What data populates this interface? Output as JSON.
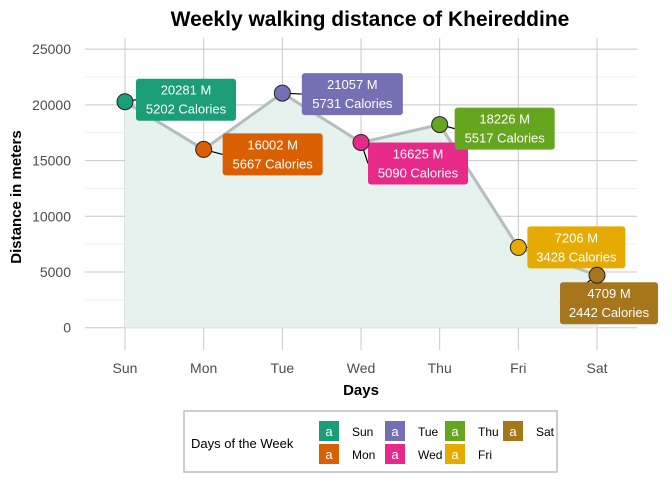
{
  "chart_data": {
    "type": "area",
    "title": "Weekly walking distance of Kheireddine",
    "xlabel": "Days",
    "ylabel": "Distance in meters",
    "ylim": [
      -2000,
      26000
    ],
    "yticks": [
      0,
      5000,
      10000,
      15000,
      20000,
      25000
    ],
    "ytick_labels": [
      "0",
      "5000",
      "10000",
      "15000",
      "20000",
      "25000"
    ],
    "categories": [
      "Sun",
      "Mon",
      "Tue",
      "Wed",
      "Thu",
      "Fri",
      "Sat"
    ],
    "values": [
      20281,
      16002,
      21057,
      16625,
      18226,
      7206,
      4709
    ],
    "calories": [
      5202,
      5667,
      5731,
      5090,
      5517,
      3428,
      2442
    ],
    "distance_labels": [
      "20281 M",
      "16002 M",
      "21057 M",
      "16625 M",
      "18226 M",
      "7206 M",
      "4709 M"
    ],
    "calorie_labels": [
      "5202 Calories",
      "5667 Calories",
      "5731 Calories",
      "5090 Calories",
      "5517 Calories",
      "3428 Calories",
      "2442 Calories"
    ],
    "colors": [
      "#1b9e77",
      "#d95f02",
      "#7570b3",
      "#e7298a",
      "#66a61e",
      "#e6ab02",
      "#a6761d"
    ],
    "line_color": "#b5bdbf",
    "area_color": "#e6f2ee",
    "grid": true,
    "legend": {
      "title": "Days of the  Week",
      "placement": "bottom",
      "key_glyph": "a",
      "items": [
        "Sun",
        "Mon",
        "Tue",
        "Wed",
        "Thu",
        "Fri",
        "Sat"
      ]
    }
  }
}
